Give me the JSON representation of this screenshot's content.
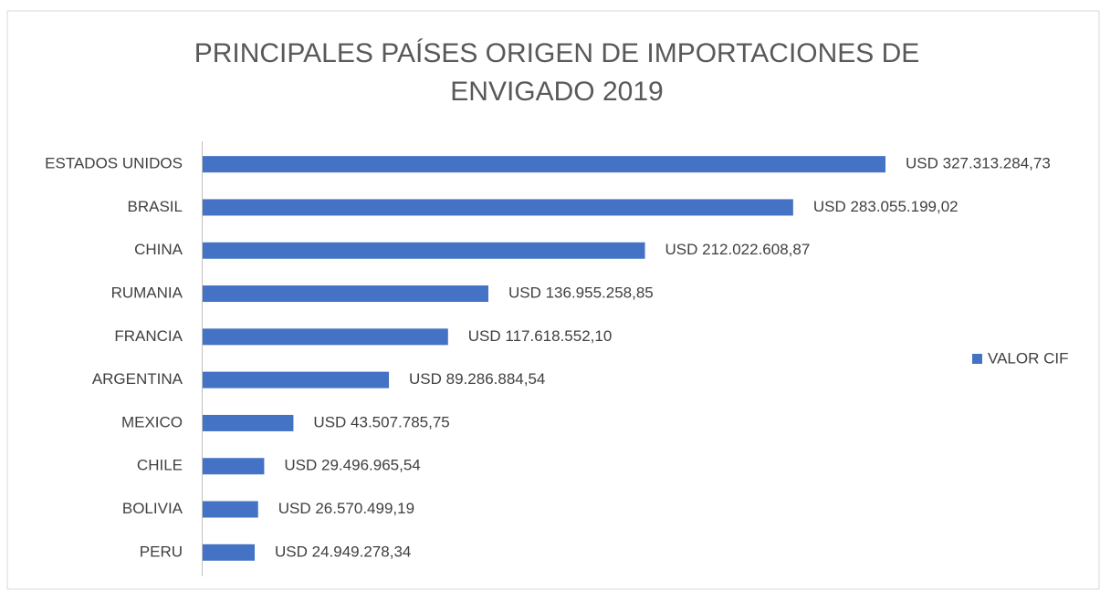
{
  "chart_data": {
    "type": "bar",
    "orientation": "horizontal",
    "title": "PRINCIPALES PAÍSES ORIGEN DE IMPORTACIONES DE ENVIGADO 2019",
    "categories": [
      "ESTADOS UNIDOS",
      "BRASIL",
      "CHINA",
      "RUMANIA",
      "FRANCIA",
      "ARGENTINA",
      "MEXICO",
      "CHILE",
      "BOLIVIA",
      "PERU"
    ],
    "series": [
      {
        "name": "VALOR CIF",
        "color": "#4472c4",
        "values": [
          327313284.73,
          283055199.02,
          212022608.87,
          136955258.85,
          117618552.1,
          89286884.54,
          43507785.75,
          29496965.54,
          26570499.19,
          24949278.34
        ],
        "value_labels": [
          "USD 327.313.284,73",
          "USD 283.055.199,02",
          "USD 212.022.608,87",
          "USD 136.955.258,85",
          "USD 117.618.552,10",
          "USD 89.286.884,54",
          "USD 43.507.785,75",
          "USD 29.496.965,54",
          "USD 26.570.499,19",
          "USD 24.949.278,34"
        ]
      }
    ],
    "legend": "right"
  }
}
